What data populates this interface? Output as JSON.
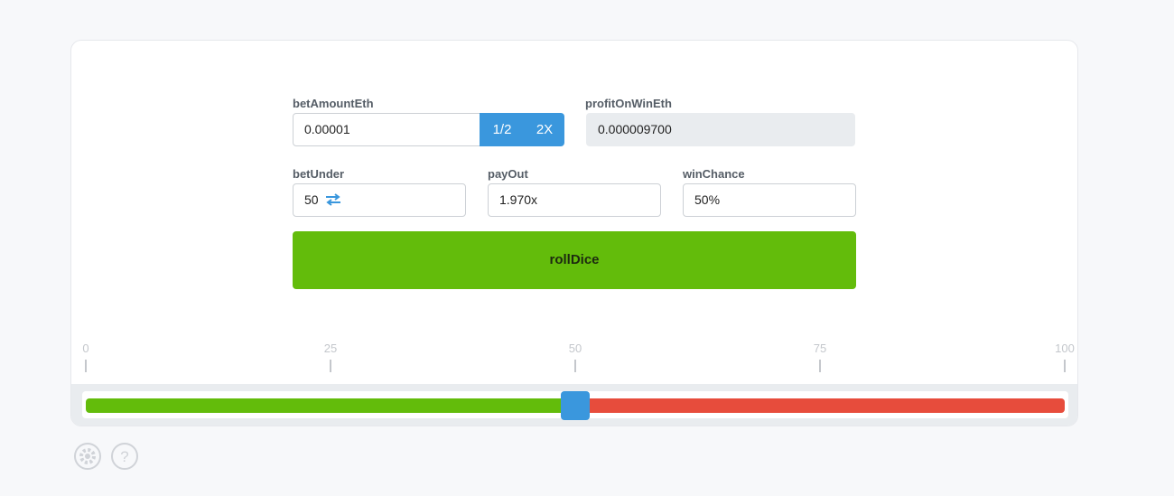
{
  "form": {
    "betAmount": {
      "label": "betAmountEth",
      "value": "0.00001",
      "half": "1/2",
      "double": "2X"
    },
    "profit": {
      "label": "profitOnWinEth",
      "value": "0.000009700"
    },
    "betUnder": {
      "label": "betUnder",
      "value": 50
    },
    "payOut": {
      "label": "payOut",
      "value": "1.970x"
    },
    "winChance": {
      "label": "winChance",
      "value": "50%"
    },
    "roll": "rollDice"
  },
  "slider": {
    "ticks": [
      0,
      25,
      50,
      75,
      100
    ]
  },
  "help_icon": "?"
}
